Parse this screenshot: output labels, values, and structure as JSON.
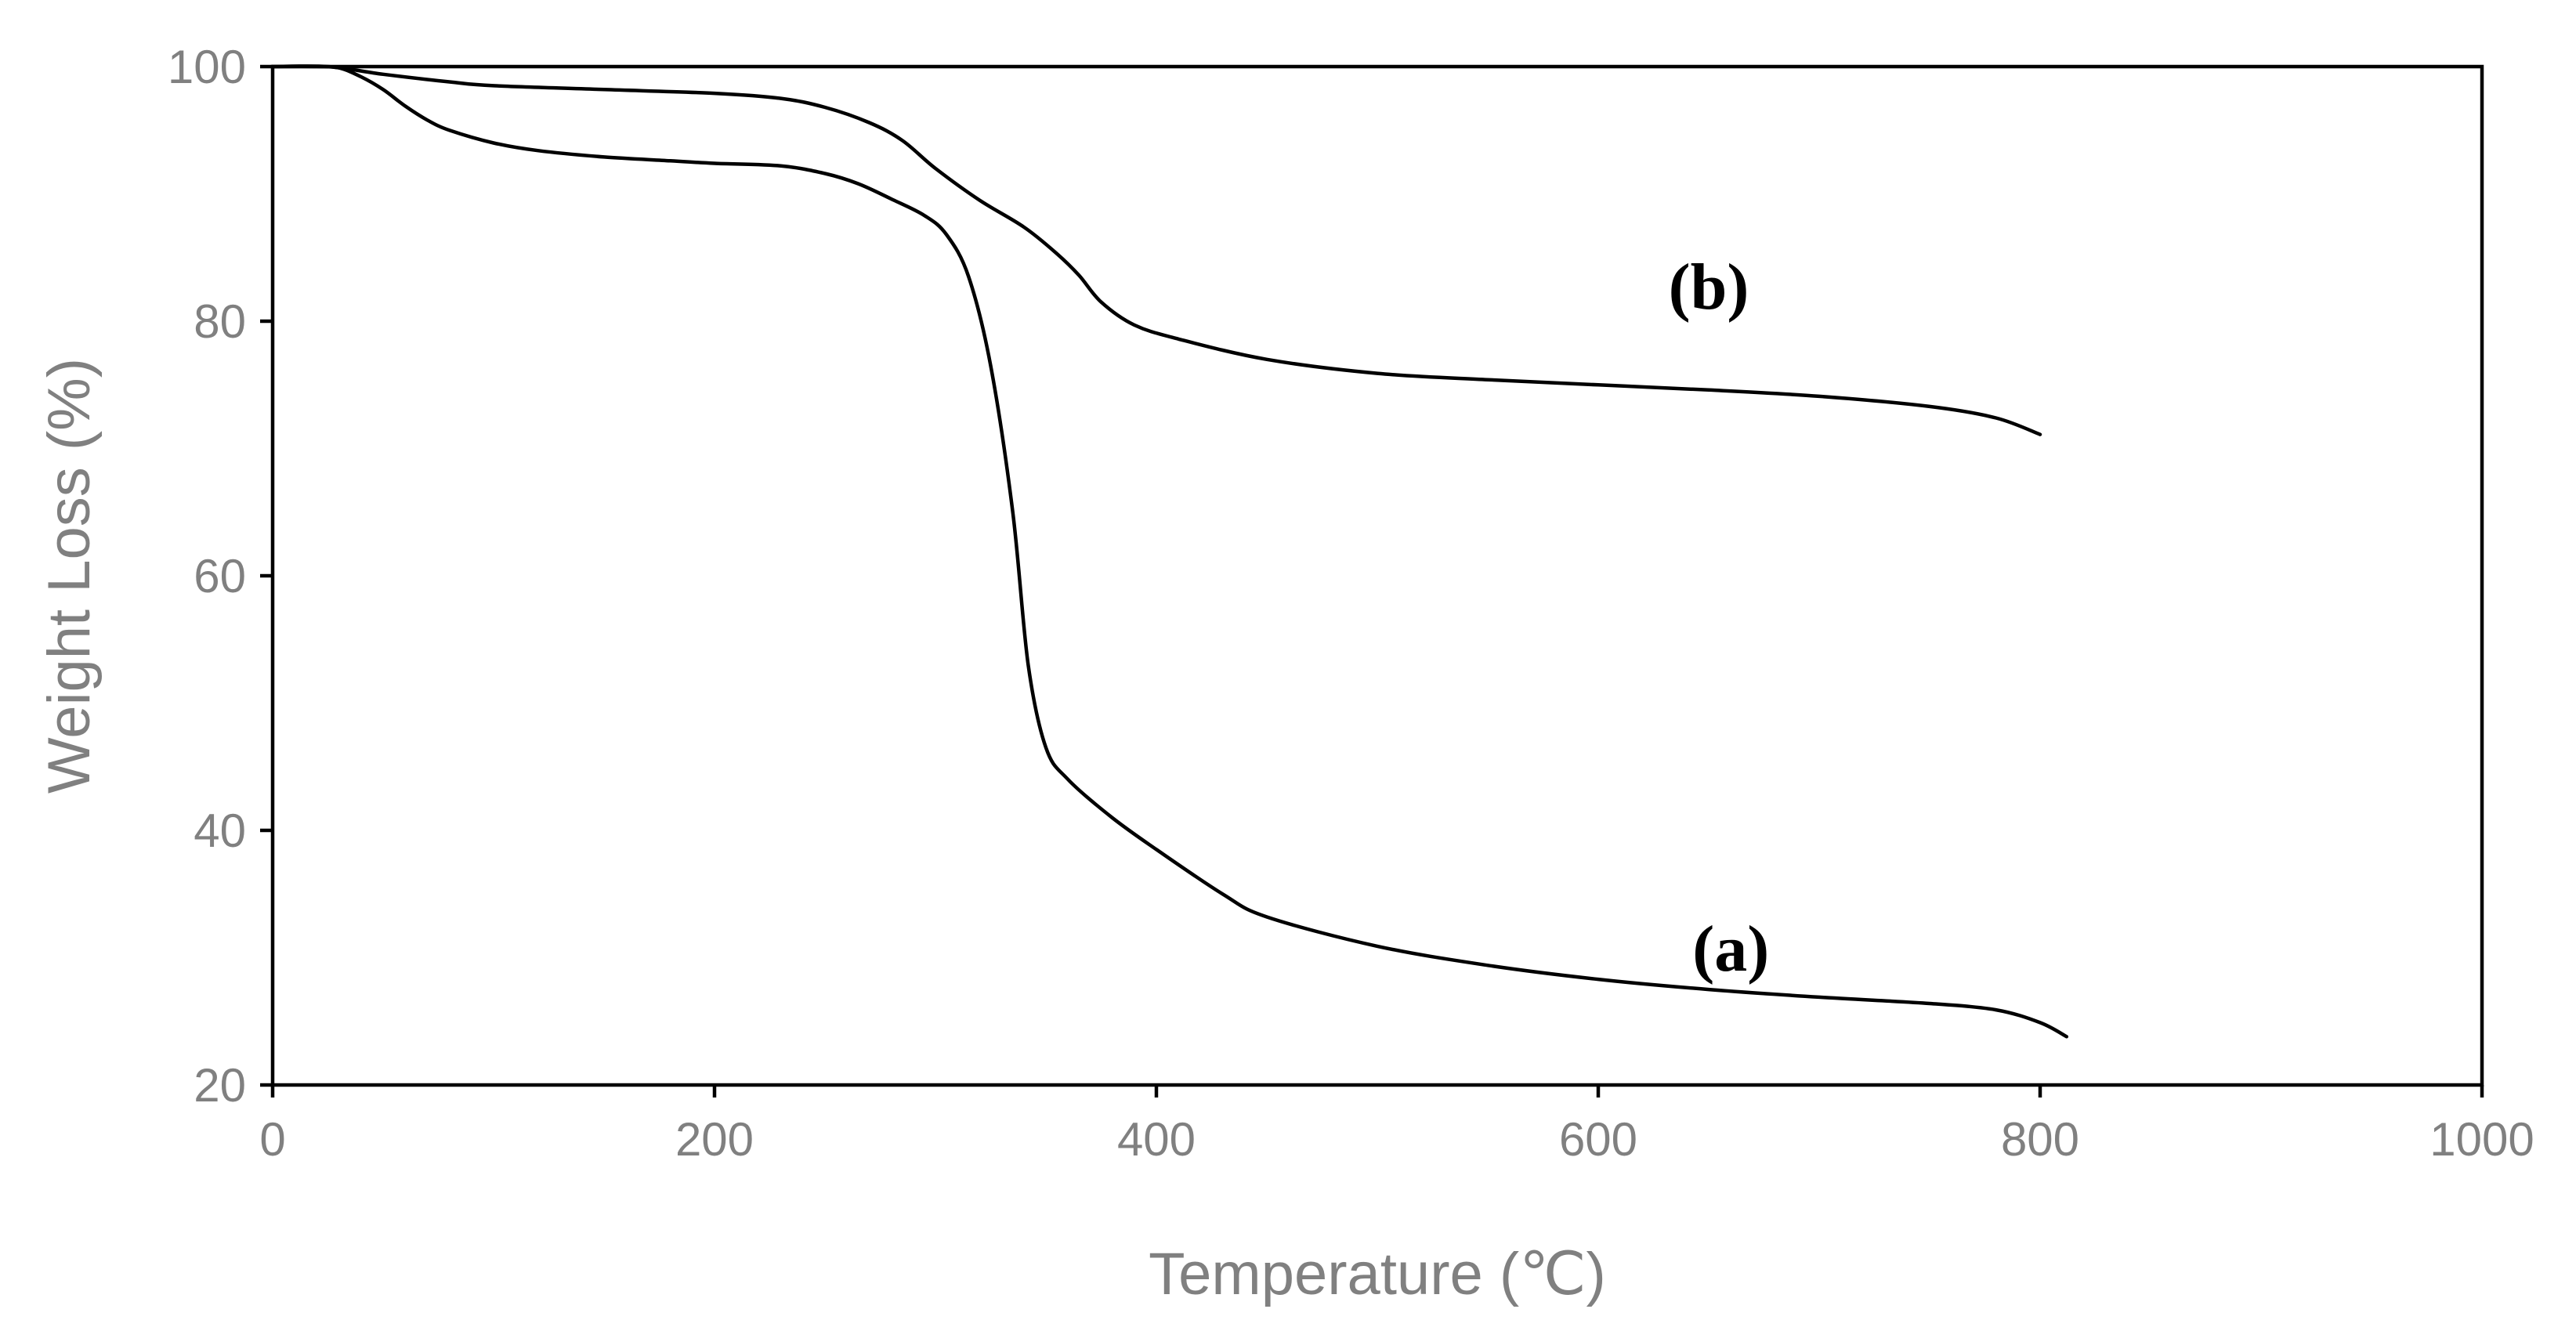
{
  "chart_data": {
    "type": "line",
    "title": "",
    "xlabel": "Temperature (℃)",
    "ylabel": "Weight Loss (%)",
    "xlim": [
      0,
      1000
    ],
    "ylim": [
      20,
      100
    ],
    "xticks": [
      0,
      200,
      400,
      600,
      800,
      1000
    ],
    "yticks": [
      20,
      40,
      60,
      80,
      100
    ],
    "grid": false,
    "legend": "none",
    "line_color": "#000000",
    "series": [
      {
        "name": "(a)",
        "label": "(a)",
        "label_at": [
          660,
          29
        ],
        "points": [
          [
            0,
            100
          ],
          [
            20,
            100
          ],
          [
            30,
            99.9
          ],
          [
            40,
            99.2
          ],
          [
            50,
            98.2
          ],
          [
            60,
            96.9
          ],
          [
            70,
            95.8
          ],
          [
            80,
            95.0
          ],
          [
            100,
            94.0
          ],
          [
            120,
            93.4
          ],
          [
            150,
            92.9
          ],
          [
            180,
            92.6
          ],
          [
            200,
            92.4
          ],
          [
            230,
            92.2
          ],
          [
            250,
            91.6
          ],
          [
            265,
            90.8
          ],
          [
            280,
            89.6
          ],
          [
            295,
            88.3
          ],
          [
            305,
            86.8
          ],
          [
            315,
            83.5
          ],
          [
            325,
            76.5
          ],
          [
            335,
            65.0
          ],
          [
            342,
            53.0
          ],
          [
            350,
            46.5
          ],
          [
            360,
            44.0
          ],
          [
            380,
            41.0
          ],
          [
            400,
            38.5
          ],
          [
            430,
            35.0
          ],
          [
            450,
            33.2
          ],
          [
            500,
            30.9
          ],
          [
            550,
            29.4
          ],
          [
            600,
            28.3
          ],
          [
            650,
            27.5
          ],
          [
            700,
            26.9
          ],
          [
            750,
            26.4
          ],
          [
            780,
            25.9
          ],
          [
            800,
            24.9
          ],
          [
            812,
            23.8
          ]
        ]
      },
      {
        "name": "(b)",
        "label": "(b)",
        "label_at": [
          650,
          81
        ],
        "points": [
          [
            0,
            100
          ],
          [
            25,
            100
          ],
          [
            50,
            99.4
          ],
          [
            80,
            98.8
          ],
          [
            100,
            98.5
          ],
          [
            150,
            98.2
          ],
          [
            200,
            97.9
          ],
          [
            230,
            97.5
          ],
          [
            250,
            96.8
          ],
          [
            270,
            95.6
          ],
          [
            285,
            94.2
          ],
          [
            300,
            92.0
          ],
          [
            320,
            89.5
          ],
          [
            340,
            87.4
          ],
          [
            355,
            85.3
          ],
          [
            365,
            83.6
          ],
          [
            375,
            81.5
          ],
          [
            390,
            79.7
          ],
          [
            410,
            78.6
          ],
          [
            450,
            77.0
          ],
          [
            500,
            75.9
          ],
          [
            550,
            75.4
          ],
          [
            600,
            75.0
          ],
          [
            650,
            74.6
          ],
          [
            700,
            74.1
          ],
          [
            750,
            73.3
          ],
          [
            780,
            72.4
          ],
          [
            800,
            71.1
          ]
        ]
      }
    ]
  }
}
